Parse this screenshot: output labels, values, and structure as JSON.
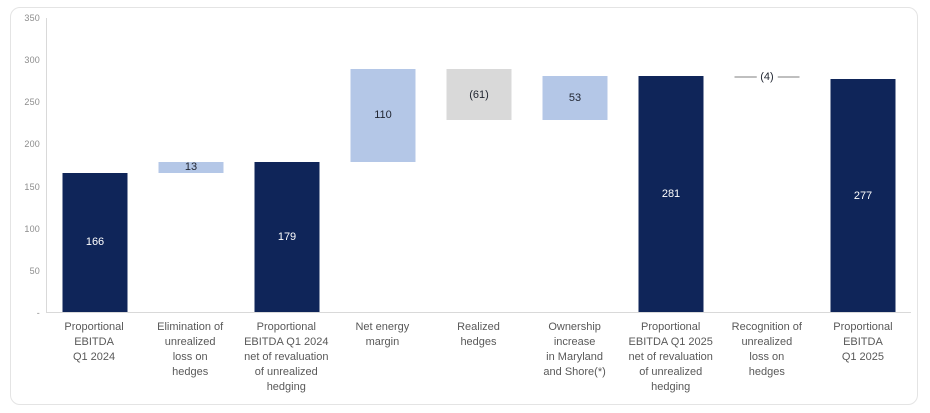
{
  "chart_data": {
    "type": "bar",
    "subtype": "waterfall",
    "title": "",
    "xlabel": "",
    "ylabel": "",
    "ylim": [
      0,
      350
    ],
    "grid": false,
    "legend": false,
    "y_axis": {
      "ticks": [
        "350",
        "300",
        "250",
        "200",
        "150",
        "100",
        "50",
        "-"
      ],
      "tick_values": [
        350,
        300,
        250,
        200,
        150,
        100,
        50,
        0
      ]
    },
    "categories": [
      "Proportional\nEBITDA\nQ1 2024",
      "Elimination of\nunrealized\nloss on\nhedges",
      "Proportional\nEBITDA Q1 2024\nnet of revaluation\nof unrealized\nhedging",
      "Net energy\nmargin",
      "Realized\nhedges",
      "Ownership\nincrease\nin Maryland\nand Shore(*)",
      "Proportional\nEBITDA Q1 2025\nnet of revaluation\nof unrealized\nhedging",
      "Recognition of\nunrealized\nloss on\nhedges",
      "Proportional\nEBITDA\nQ1 2025"
    ],
    "bars": [
      {
        "label": "166",
        "value": 166,
        "base": 0,
        "end": 166,
        "color": "navy",
        "label_style": "light"
      },
      {
        "label": "13",
        "value": 13,
        "base": 166,
        "end": 179,
        "color": "lightblue",
        "label_style": "dark"
      },
      {
        "label": "179",
        "value": 179,
        "base": 0,
        "end": 179,
        "color": "navy",
        "label_style": "light"
      },
      {
        "label": "110",
        "value": 110,
        "base": 179,
        "end": 289,
        "color": "lightblue",
        "label_style": "dark"
      },
      {
        "label": "(61)",
        "value": -61,
        "base": 289,
        "end": 228,
        "color": "gray",
        "label_style": "dark"
      },
      {
        "label": "53",
        "value": 53,
        "base": 228,
        "end": 281,
        "color": "lightblue",
        "label_style": "dark"
      },
      {
        "label": "281",
        "value": 281,
        "base": 0,
        "end": 281,
        "color": "navy",
        "label_style": "light"
      },
      {
        "label": "(4)",
        "value": -4,
        "base": 281,
        "end": 277,
        "color": "connector",
        "label_style": "dark"
      },
      {
        "label": "277",
        "value": 277,
        "base": 0,
        "end": 277,
        "color": "navy",
        "label_style": "light"
      }
    ],
    "colors": {
      "navy": "#0f2559",
      "lightblue": "#b4c7e7",
      "gray": "#d9d9d9",
      "connector_line": "#bfbfbf",
      "label_light": "#ffffff",
      "label_dark": "#1f2430",
      "axis_line": "#d9d9d9",
      "tick_text": "#8c8c8c",
      "category_text": "#595959"
    }
  }
}
